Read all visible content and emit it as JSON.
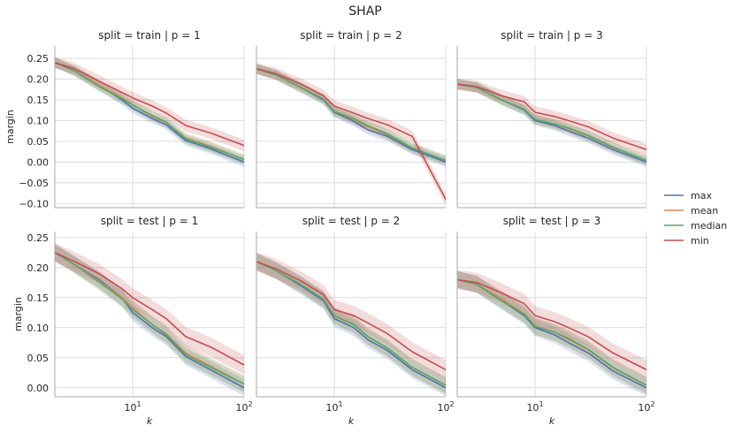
{
  "chart_data": {
    "type": "line",
    "title": "SHAP",
    "xlabel": "k",
    "ylabel": "margin",
    "xscale": "log",
    "xlim": [
      2,
      100
    ],
    "legend": {
      "position": "right",
      "entries": [
        "max",
        "mean",
        "median",
        "min"
      ]
    },
    "colors": {
      "max": "#4c72b0",
      "mean": "#dd8452",
      "median": "#55a868",
      "min": "#c44e52"
    },
    "x": [
      2,
      3,
      5,
      8,
      10,
      15,
      20,
      30,
      50,
      100
    ],
    "x_ticks": [
      {
        "value": 10,
        "base": "10",
        "exp": "1"
      },
      {
        "value": 100,
        "base": "10",
        "exp": "2"
      }
    ],
    "rows": [
      {
        "split": "train",
        "ylim": [
          -0.11,
          0.28
        ],
        "yticks": [
          "-0.10",
          "-0.05",
          "0.00",
          "0.05",
          "0.10",
          "0.15",
          "0.20",
          "0.25"
        ]
      },
      {
        "split": "test",
        "ylim": [
          -0.015,
          0.26
        ],
        "yticks": [
          "0.00",
          "0.05",
          "0.10",
          "0.15",
          "0.20",
          "0.25"
        ]
      }
    ],
    "panels": [
      {
        "title": "split = train | p = 1",
        "row": 0,
        "col": 0,
        "series": [
          {
            "name": "max",
            "values": [
              0.24,
              0.22,
              0.185,
              0.15,
              0.13,
              0.105,
              0.09,
              0.052,
              0.032,
              0.0
            ],
            "band": 0.012
          },
          {
            "name": "mean",
            "values": [
              0.24,
              0.22,
              0.185,
              0.155,
              0.138,
              0.11,
              0.095,
              0.058,
              0.038,
              0.006
            ],
            "band": 0.012
          },
          {
            "name": "median",
            "values": [
              0.24,
              0.22,
              0.182,
              0.153,
              0.137,
              0.112,
              0.096,
              0.056,
              0.036,
              0.006
            ],
            "band": 0.012
          },
          {
            "name": "min",
            "values": [
              0.24,
              0.225,
              0.195,
              0.168,
              0.155,
              0.135,
              0.118,
              0.088,
              0.07,
              0.04
            ],
            "band": 0.014
          }
        ]
      },
      {
        "title": "split = train | p = 2",
        "row": 0,
        "col": 1,
        "series": [
          {
            "name": "max",
            "values": [
              0.225,
              0.21,
              0.18,
              0.15,
              0.12,
              0.098,
              0.078,
              0.062,
              0.03,
              0.0
            ],
            "band": 0.012
          },
          {
            "name": "mean",
            "values": [
              0.225,
              0.21,
              0.18,
              0.152,
              0.122,
              0.102,
              0.085,
              0.066,
              0.034,
              0.004
            ],
            "band": 0.012
          },
          {
            "name": "median",
            "values": [
              0.225,
              0.21,
              0.18,
              0.152,
              0.122,
              0.104,
              0.088,
              0.068,
              0.034,
              0.004
            ],
            "band": 0.012
          },
          {
            "name": "min",
            "values": [
              0.225,
              0.213,
              0.188,
              0.16,
              0.135,
              0.118,
              0.105,
              0.09,
              0.062,
              -0.09
            ],
            "band": 0.014
          }
        ]
      },
      {
        "title": "split = train | p = 3",
        "row": 0,
        "col": 2,
        "series": [
          {
            "name": "max",
            "values": [
              0.188,
              0.18,
              0.15,
              0.125,
              0.1,
              0.088,
              0.075,
              0.058,
              0.03,
              0.0
            ],
            "band": 0.012
          },
          {
            "name": "mean",
            "values": [
              0.188,
              0.18,
              0.15,
              0.127,
              0.103,
              0.092,
              0.08,
              0.063,
              0.035,
              0.004
            ],
            "band": 0.012
          },
          {
            "name": "median",
            "values": [
              0.188,
              0.18,
              0.15,
              0.127,
              0.103,
              0.092,
              0.082,
              0.064,
              0.036,
              0.004
            ],
            "band": 0.012
          },
          {
            "name": "min",
            "values": [
              0.188,
              0.182,
              0.16,
              0.145,
              0.12,
              0.11,
              0.1,
              0.085,
              0.058,
              0.03
            ],
            "band": 0.014
          }
        ]
      },
      {
        "title": "split = test | p = 1",
        "row": 1,
        "col": 0,
        "series": [
          {
            "name": "max",
            "values": [
              0.225,
              0.205,
              0.18,
              0.15,
              0.125,
              0.1,
              0.085,
              0.052,
              0.03,
              0.0
            ],
            "band": 0.014
          },
          {
            "name": "mean",
            "values": [
              0.225,
              0.205,
              0.178,
              0.15,
              0.133,
              0.105,
              0.09,
              0.058,
              0.036,
              0.006
            ],
            "band": 0.014
          },
          {
            "name": "median",
            "values": [
              0.225,
              0.205,
              0.176,
              0.148,
              0.13,
              0.105,
              0.088,
              0.055,
              0.034,
              0.006
            ],
            "band": 0.014
          },
          {
            "name": "min",
            "values": [
              0.225,
              0.21,
              0.19,
              0.165,
              0.15,
              0.13,
              0.115,
              0.085,
              0.068,
              0.038
            ],
            "band": 0.016
          }
        ]
      },
      {
        "title": "split = test | p = 2",
        "row": 1,
        "col": 1,
        "series": [
          {
            "name": "max",
            "values": [
              0.21,
              0.195,
              0.17,
              0.145,
              0.115,
              0.1,
              0.08,
              0.062,
              0.03,
              0.0
            ],
            "band": 0.014
          },
          {
            "name": "mean",
            "values": [
              0.21,
              0.195,
              0.172,
              0.147,
              0.12,
              0.105,
              0.085,
              0.066,
              0.034,
              0.004
            ],
            "band": 0.014
          },
          {
            "name": "median",
            "values": [
              0.21,
              0.195,
              0.172,
              0.147,
              0.12,
              0.105,
              0.085,
              0.066,
              0.034,
              0.004
            ],
            "band": 0.014
          },
          {
            "name": "min",
            "values": [
              0.21,
              0.198,
              0.178,
              0.155,
              0.13,
              0.12,
              0.108,
              0.09,
              0.06,
              0.03
            ],
            "band": 0.016
          }
        ]
      },
      {
        "title": "split = test | p = 3",
        "row": 1,
        "col": 2,
        "series": [
          {
            "name": "max",
            "values": [
              0.18,
              0.172,
              0.145,
              0.12,
              0.1,
              0.088,
              0.075,
              0.058,
              0.028,
              0.0
            ],
            "band": 0.014
          },
          {
            "name": "mean",
            "values": [
              0.18,
              0.172,
              0.148,
              0.123,
              0.103,
              0.092,
              0.08,
              0.063,
              0.033,
              0.004
            ],
            "band": 0.014
          },
          {
            "name": "median",
            "values": [
              0.18,
              0.172,
              0.145,
              0.122,
              0.102,
              0.092,
              0.082,
              0.064,
              0.034,
              0.004
            ],
            "band": 0.014
          },
          {
            "name": "min",
            "values": [
              0.18,
              0.175,
              0.158,
              0.14,
              0.12,
              0.11,
              0.1,
              0.085,
              0.058,
              0.03
            ],
            "band": 0.016
          }
        ]
      }
    ]
  }
}
